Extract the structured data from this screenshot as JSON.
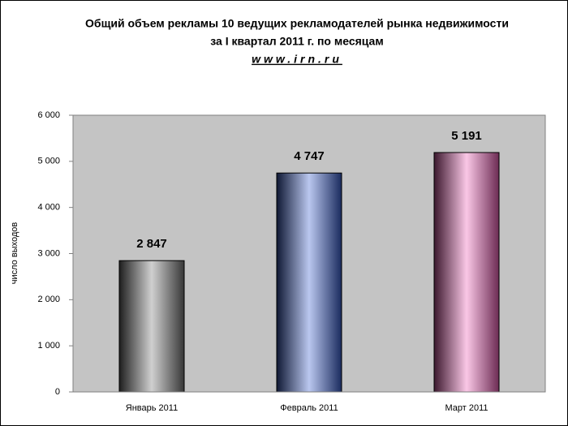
{
  "chart_data": {
    "type": "bar",
    "title": [
      "Общий объем рекламы 10 ведущих рекламодателей рынка недвижимости",
      "за I квартал  2011 г. по месяцам"
    ],
    "subtitle": "www.irn.ru",
    "y_label": "число выходов",
    "categories": [
      "Январь 2011",
      "Февраль 2011",
      "Март 2011"
    ],
    "values": [
      2847,
      4747,
      5191
    ],
    "value_labels": [
      "2 847",
      "4 747",
      "5 191"
    ],
    "colors": [
      "#7a7a7a",
      "#3a5fd0",
      "#f060b8"
    ],
    "ylim": [
      0,
      6000
    ],
    "yticks": [
      0,
      {
        "value": 1000,
        "label": "1 000"
      },
      {
        "value": 2000,
        "label": "2 000"
      },
      {
        "value": 3000,
        "label": "3 000"
      },
      {
        "value": 4000,
        "label": "4 000"
      },
      {
        "value": 5000,
        "label": "5 000"
      },
      {
        "value": 6000,
        "label": "6 000"
      }
    ],
    "grid": false
  }
}
